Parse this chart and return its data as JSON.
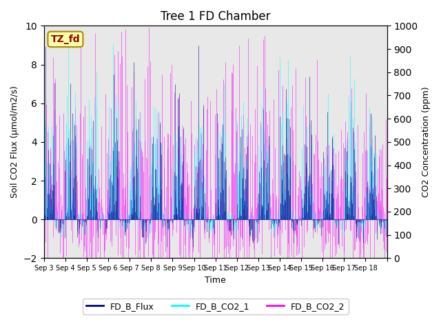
{
  "title": "Tree 1 FD Chamber",
  "xlabel": "Time",
  "ylabel_left": "Soil CO2 Flux (μmol/m2/s)",
  "ylabel_right": "CO2 Concentration (ppm)",
  "ylim_left": [
    -2,
    10
  ],
  "ylim_right": [
    0,
    1000
  ],
  "xlim": [
    0,
    16
  ],
  "x_tick_positions": [
    0,
    1,
    2,
    3,
    4,
    5,
    6,
    7,
    8,
    9,
    10,
    11,
    12,
    13,
    14,
    15,
    16
  ],
  "x_tick_labels": [
    "Sep 3",
    "Sep 4",
    "Sep 5",
    "Sep 6",
    "Sep 7",
    "Sep 8",
    "Sep 9",
    "Sep 10",
    "Sep 11",
    "Sep 12",
    "Sep 13",
    "Sep 14",
    "Sep 15",
    "Sep 16",
    "Sep 17",
    "Sep 18",
    ""
  ],
  "annotation_text": "TZ_fd",
  "annotation_color": "#8B0000",
  "annotation_bg": "#ffffaa",
  "annotation_border": "#aa8800",
  "color_flux": "#00008B",
  "color_co2_1": "#00FFFF",
  "color_co2_2": "#FF00FF",
  "legend_labels": [
    "FD_B_Flux",
    "FD_B_CO2_1",
    "FD_B_CO2_2"
  ],
  "background_color": "#e8e8e8",
  "n_days": 16,
  "n_per_day": 48,
  "seed": 42
}
